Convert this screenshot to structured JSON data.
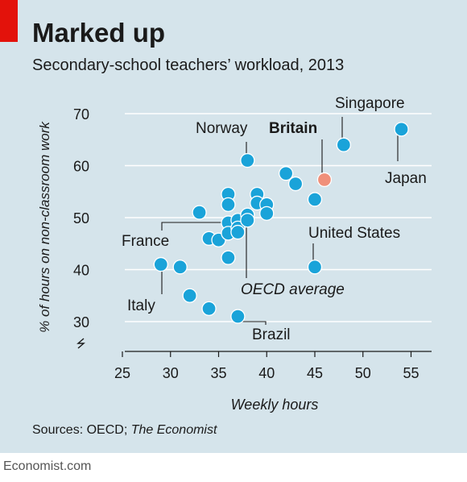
{
  "header": {
    "title": "Marked up",
    "subtitle": "Secondary-school teachers’ workload, 2013"
  },
  "footer": {
    "source_prefix": "Sources: OECD; ",
    "source_italic": "The Economist",
    "brand": "Economist.com"
  },
  "colors": {
    "panel": "#d5e4eb",
    "accent_red": "#e3120b",
    "point": "#1aa3d9",
    "highlight": "#f0907a",
    "gridline": "#ffffff"
  },
  "chart_data": {
    "type": "scatter",
    "xlabel": "Weekly hours",
    "ylabel": "% of hours on non-classroom work",
    "xlim": [
      25,
      57
    ],
    "ylim": [
      28,
      73
    ],
    "xticks": [
      25,
      30,
      35,
      40,
      45,
      50,
      55
    ],
    "yticks": [
      30,
      40,
      50,
      60,
      70
    ],
    "axis_break": true,
    "grid": true,
    "points": [
      {
        "x": 29,
        "y": 41
      },
      {
        "x": 31,
        "y": 40.5
      },
      {
        "x": 32,
        "y": 35
      },
      {
        "x": 33,
        "y": 51
      },
      {
        "x": 34,
        "y": 32.5
      },
      {
        "x": 34,
        "y": 46
      },
      {
        "x": 35,
        "y": 45.7
      },
      {
        "x": 36,
        "y": 54.5
      },
      {
        "x": 36,
        "y": 52.5
      },
      {
        "x": 36,
        "y": 49
      },
      {
        "x": 36,
        "y": 47
      },
      {
        "x": 36,
        "y": 42.3
      },
      {
        "x": 37,
        "y": 49.5
      },
      {
        "x": 37,
        "y": 48
      },
      {
        "x": 37,
        "y": 47.2
      },
      {
        "x": 37,
        "y": 31
      },
      {
        "x": 38,
        "y": 61
      },
      {
        "x": 38,
        "y": 50.5
      },
      {
        "x": 38,
        "y": 49.5
      },
      {
        "x": 39,
        "y": 54.5
      },
      {
        "x": 39,
        "y": 52.8
      },
      {
        "x": 40,
        "y": 52.5
      },
      {
        "x": 40,
        "y": 50.8
      },
      {
        "x": 42,
        "y": 58.5
      },
      {
        "x": 43,
        "y": 56.5
      },
      {
        "x": 45,
        "y": 53.5
      },
      {
        "x": 45,
        "y": 40.5
      },
      {
        "x": 48,
        "y": 64
      },
      {
        "x": 54,
        "y": 67
      },
      {
        "x": 46,
        "y": 57.3,
        "highlight": true
      }
    ],
    "annotations": {
      "singapore": "Singapore",
      "norway": "Norway",
      "britain": "Britain",
      "japan": "Japan",
      "france": "France",
      "united_states": "United States",
      "oecd_average": "OECD average",
      "italy": "Italy",
      "brazil": "Brazil"
    }
  }
}
